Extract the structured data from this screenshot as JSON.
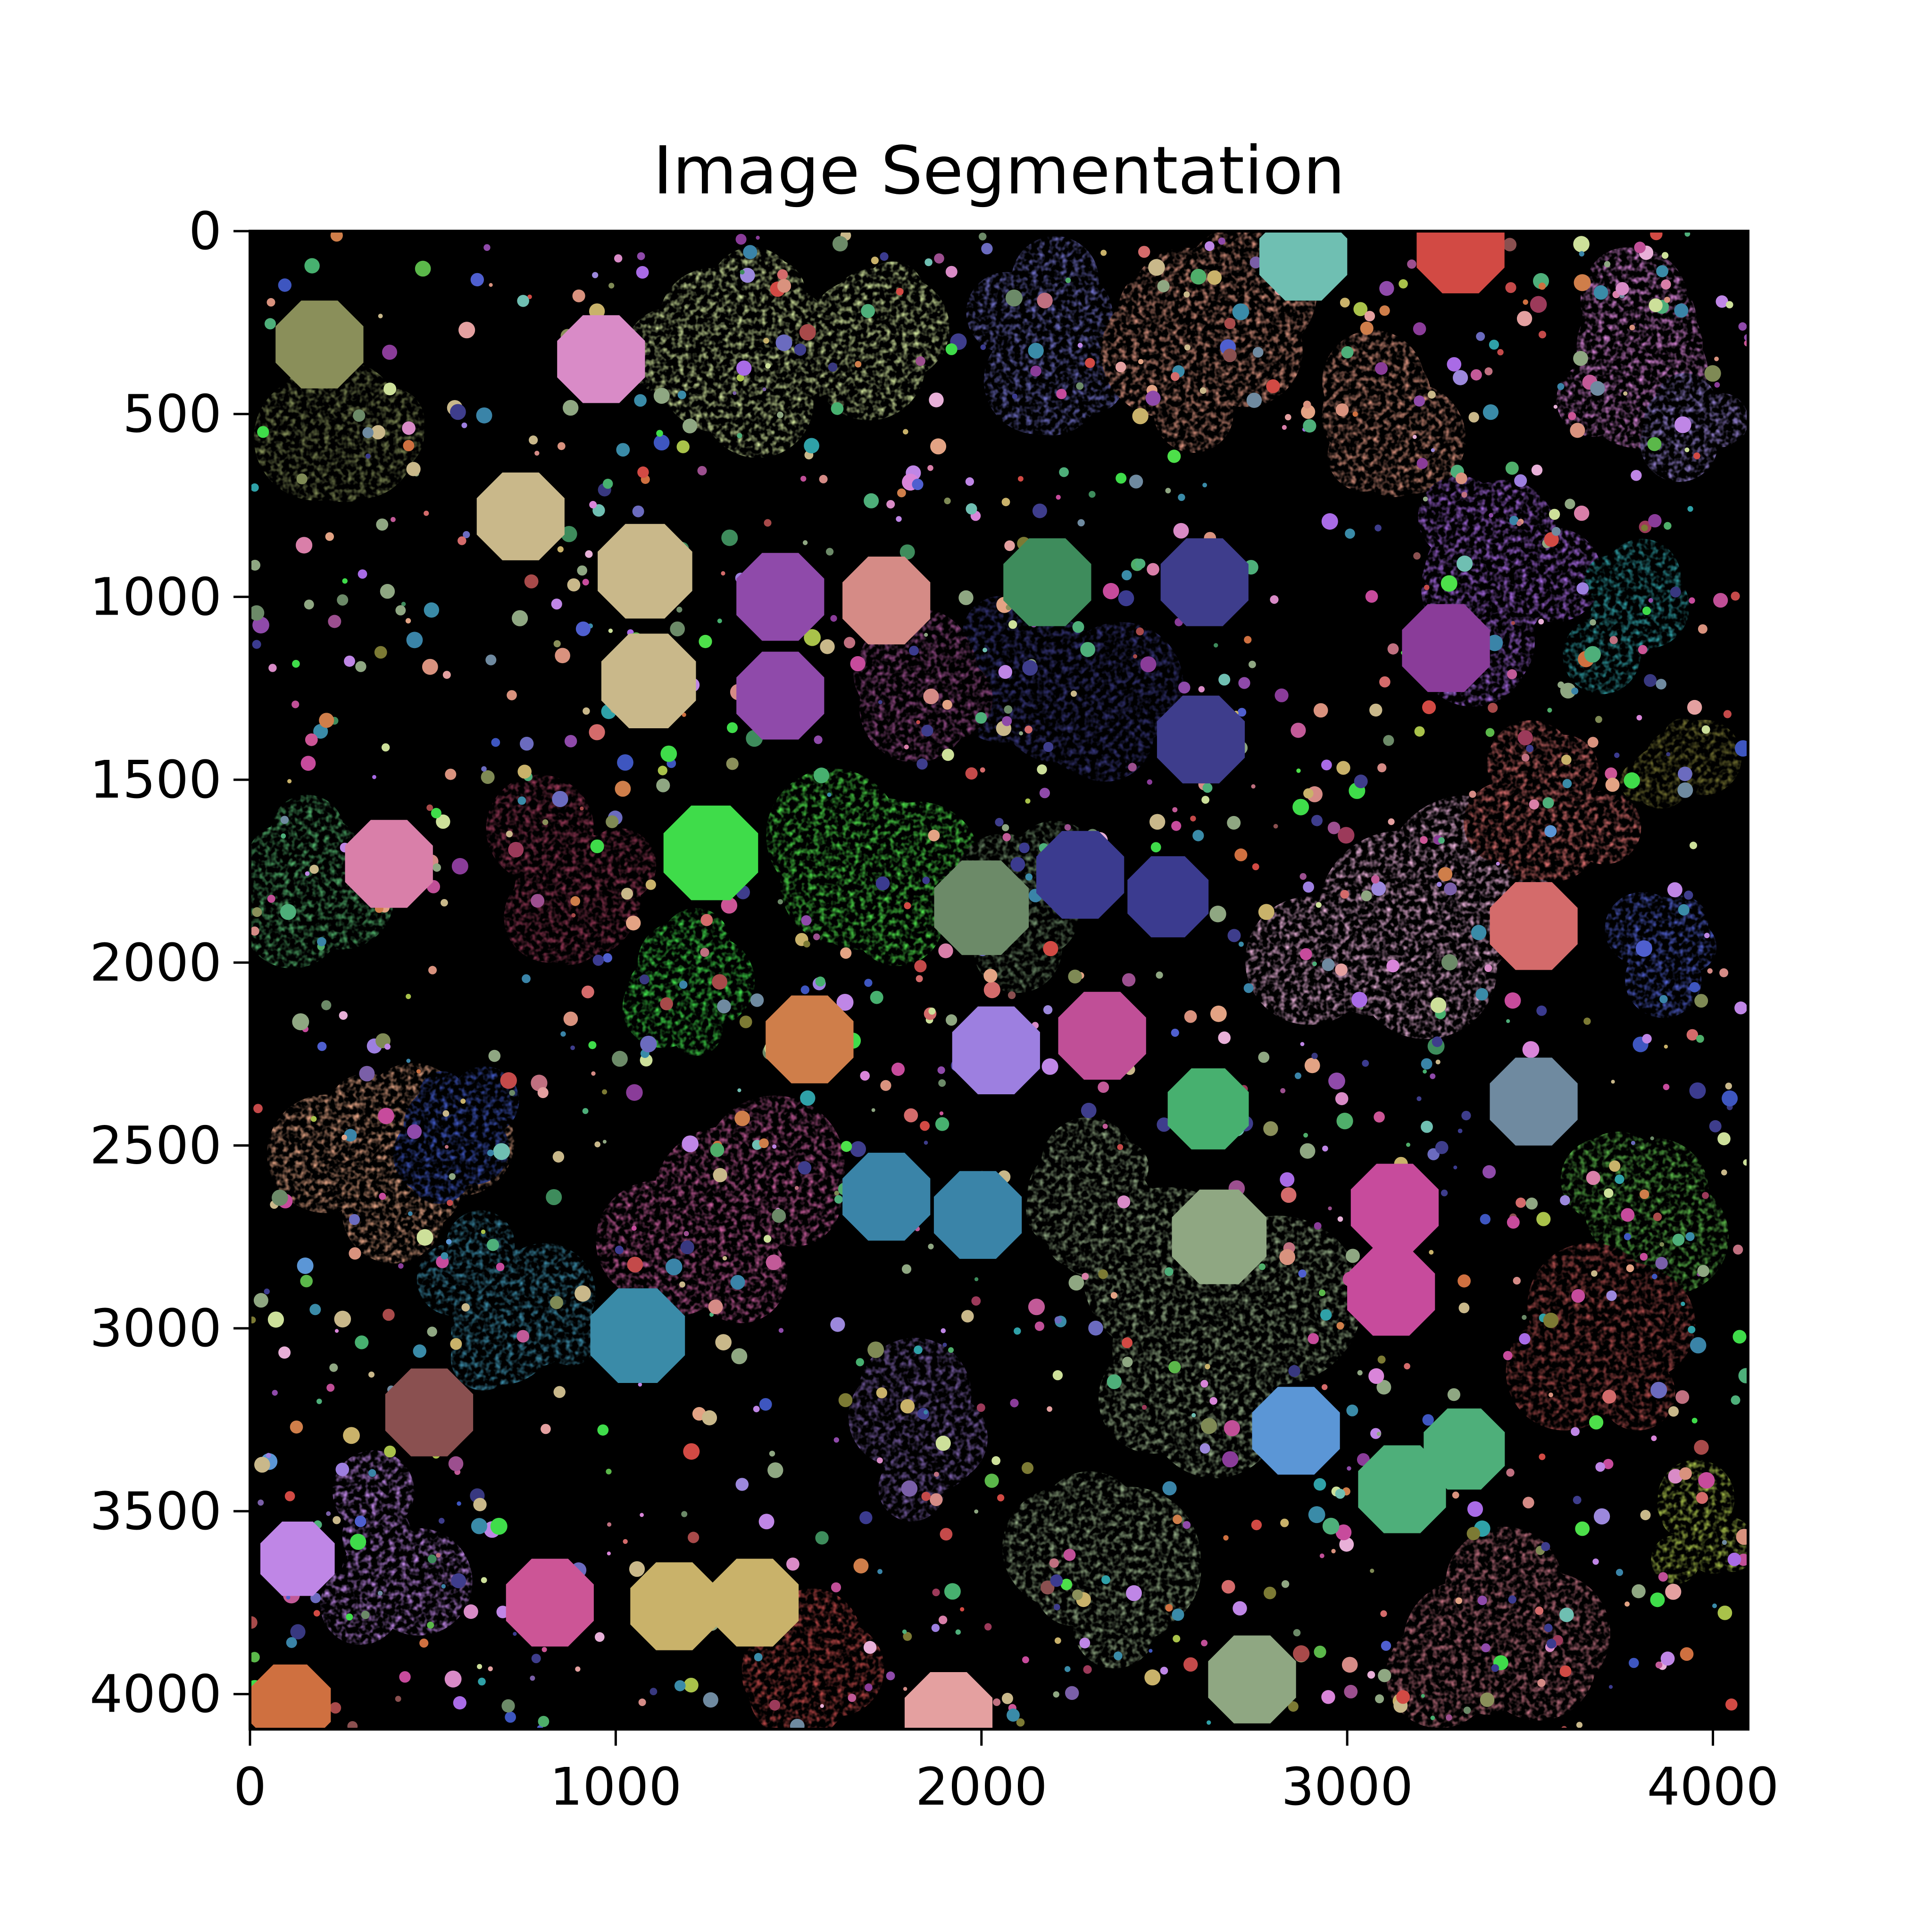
{
  "chart_data": {
    "type": "heatmap",
    "title": "Image Segmentation",
    "xlabel": "",
    "ylabel": "",
    "xlim": [
      0,
      4096
    ],
    "ylim": [
      4096,
      0
    ],
    "x_ticks": [
      0,
      1000,
      2000,
      3000,
      4000
    ],
    "y_ticks": [
      0,
      500,
      1000,
      1500,
      2000,
      2500,
      3000,
      3500,
      4000
    ],
    "x_tick_labels": [
      "0",
      "1000",
      "2000",
      "3000",
      "4000"
    ],
    "y_tick_labels": [
      "0",
      "500",
      "1000",
      "1500",
      "2000",
      "2500",
      "3000",
      "3500",
      "4000"
    ],
    "background_color": "#000000",
    "segments": [
      {
        "x": 960,
        "y": 350,
        "r": 130,
        "color": "#d98bc7",
        "shape": "octagon"
      },
      {
        "x": 2880,
        "y": 70,
        "r": 130,
        "color": "#6fbfb2",
        "shape": "octagon"
      },
      {
        "x": 3310,
        "y": 50,
        "r": 130,
        "color": "#d24a44",
        "shape": "octagon"
      },
      {
        "x": 190,
        "y": 310,
        "r": 130,
        "color": "#8a8f5a",
        "shape": "octagon"
      },
      {
        "x": 740,
        "y": 780,
        "r": 130,
        "color": "#c9b88a",
        "shape": "octagon"
      },
      {
        "x": 1080,
        "y": 930,
        "r": 140,
        "color": "#c9b88a",
        "shape": "octagon"
      },
      {
        "x": 1090,
        "y": 1230,
        "r": 140,
        "color": "#c9b88a",
        "shape": "octagon"
      },
      {
        "x": 1450,
        "y": 1000,
        "r": 130,
        "color": "#8f4aaa",
        "shape": "octagon"
      },
      {
        "x": 1450,
        "y": 1270,
        "r": 130,
        "color": "#8f4aaa",
        "shape": "octagon"
      },
      {
        "x": 1740,
        "y": 1010,
        "r": 130,
        "color": "#d58b86",
        "shape": "octagon"
      },
      {
        "x": 2180,
        "y": 960,
        "r": 130,
        "color": "#3e8c5c",
        "shape": "octagon"
      },
      {
        "x": 2610,
        "y": 960,
        "r": 130,
        "color": "#3e3d8c",
        "shape": "octagon"
      },
      {
        "x": 2600,
        "y": 1390,
        "r": 130,
        "color": "#3e3d8c",
        "shape": "octagon"
      },
      {
        "x": 3270,
        "y": 1140,
        "r": 130,
        "color": "#8a3c99",
        "shape": "octagon"
      },
      {
        "x": 380,
        "y": 1730,
        "r": 130,
        "color": "#d97fa9",
        "shape": "octagon"
      },
      {
        "x": 1260,
        "y": 1700,
        "r": 140,
        "color": "#3fdc4a",
        "shape": "octagon"
      },
      {
        "x": 2000,
        "y": 1850,
        "r": 140,
        "color": "#6c8a68",
        "shape": "octagon"
      },
      {
        "x": 2270,
        "y": 1760,
        "r": 130,
        "color": "#3b3b8f",
        "shape": "octagon"
      },
      {
        "x": 2510,
        "y": 1820,
        "r": 120,
        "color": "#3b3b8f",
        "shape": "octagon"
      },
      {
        "x": 3510,
        "y": 1900,
        "r": 130,
        "color": "#d46b6b",
        "shape": "octagon"
      },
      {
        "x": 1530,
        "y": 2210,
        "r": 130,
        "color": "#cf7e4a",
        "shape": "octagon"
      },
      {
        "x": 2040,
        "y": 2240,
        "r": 130,
        "color": "#9d7fe0",
        "shape": "octagon"
      },
      {
        "x": 2330,
        "y": 2200,
        "r": 130,
        "color": "#c04f97",
        "shape": "octagon"
      },
      {
        "x": 2620,
        "y": 2400,
        "r": 120,
        "color": "#47b06f",
        "shape": "octagon"
      },
      {
        "x": 3510,
        "y": 2380,
        "r": 130,
        "color": "#6f8aa0",
        "shape": "octagon"
      },
      {
        "x": 1740,
        "y": 2640,
        "r": 130,
        "color": "#3a84a8",
        "shape": "octagon"
      },
      {
        "x": 1990,
        "y": 2690,
        "r": 130,
        "color": "#3a84a8",
        "shape": "octagon"
      },
      {
        "x": 3130,
        "y": 2670,
        "r": 130,
        "color": "#c74b9c",
        "shape": "octagon"
      },
      {
        "x": 3120,
        "y": 2900,
        "r": 130,
        "color": "#c74b9c",
        "shape": "octagon"
      },
      {
        "x": 2650,
        "y": 2750,
        "r": 140,
        "color": "#8fa782",
        "shape": "octagon"
      },
      {
        "x": 1060,
        "y": 3020,
        "r": 140,
        "color": "#3a8ba8",
        "shape": "octagon"
      },
      {
        "x": 490,
        "y": 3230,
        "r": 130,
        "color": "#8a5050",
        "shape": "octagon"
      },
      {
        "x": 2860,
        "y": 3280,
        "r": 130,
        "color": "#5b96d6",
        "shape": "octagon"
      },
      {
        "x": 3150,
        "y": 3440,
        "r": 130,
        "color": "#4eaf7a",
        "shape": "octagon"
      },
      {
        "x": 3320,
        "y": 3330,
        "r": 120,
        "color": "#4eaf7a",
        "shape": "octagon"
      },
      {
        "x": 820,
        "y": 3750,
        "r": 130,
        "color": "#cc5596",
        "shape": "octagon"
      },
      {
        "x": 1160,
        "y": 3760,
        "r": 130,
        "color": "#c9b26a",
        "shape": "octagon"
      },
      {
        "x": 1380,
        "y": 3750,
        "r": 130,
        "color": "#c9b26a",
        "shape": "octagon"
      },
      {
        "x": 1910,
        "y": 4060,
        "r": 130,
        "color": "#e4a0a0",
        "shape": "octagon"
      },
      {
        "x": 2740,
        "y": 3960,
        "r": 130,
        "color": "#8fa782",
        "shape": "octagon"
      },
      {
        "x": 130,
        "y": 3630,
        "r": 110,
        "color": "#bf86e6",
        "shape": "octagon"
      },
      {
        "x": 110,
        "y": 4030,
        "r": 120,
        "color": "#cf7040",
        "shape": "octagon"
      },
      {
        "x": 1300,
        "y": 300,
        "r": 330,
        "color": "#cde09a",
        "shape": "blob"
      },
      {
        "x": 1680,
        "y": 280,
        "r": 300,
        "color": "#cde09a",
        "shape": "blob"
      },
      {
        "x": 300,
        "y": 550,
        "r": 340,
        "color": "#7f8a55",
        "shape": "blob"
      },
      {
        "x": 2150,
        "y": 320,
        "r": 300,
        "color": "#6b6bbf",
        "shape": "blob"
      },
      {
        "x": 2650,
        "y": 320,
        "r": 340,
        "color": "#d9927e",
        "shape": "blob"
      },
      {
        "x": 3100,
        "y": 500,
        "r": 280,
        "color": "#d9927e",
        "shape": "blob"
      },
      {
        "x": 3800,
        "y": 300,
        "r": 320,
        "color": "#d985d9",
        "shape": "blob"
      },
      {
        "x": 3950,
        "y": 550,
        "r": 200,
        "color": "#9c88dc",
        "shape": "blob"
      },
      {
        "x": 3400,
        "y": 950,
        "r": 330,
        "color": "#a96be6",
        "shape": "blob"
      },
      {
        "x": 3750,
        "y": 1050,
        "r": 220,
        "color": "#2fa1a8",
        "shape": "blob"
      },
      {
        "x": 2200,
        "y": 1250,
        "r": 350,
        "color": "#383880",
        "shape": "blob"
      },
      {
        "x": 1800,
        "y": 1300,
        "r": 280,
        "color": "#9c4f8f",
        "shape": "blob"
      },
      {
        "x": 1650,
        "y": 1750,
        "r": 350,
        "color": "#4de04a",
        "shape": "blob"
      },
      {
        "x": 1250,
        "y": 2050,
        "r": 250,
        "color": "#3fdc4a",
        "shape": "blob"
      },
      {
        "x": 850,
        "y": 1800,
        "r": 330,
        "color": "#9c3a5a",
        "shape": "blob"
      },
      {
        "x": 150,
        "y": 1800,
        "r": 280,
        "color": "#4fae6a",
        "shape": "blob"
      },
      {
        "x": 3100,
        "y": 1900,
        "r": 420,
        "color": "#e8b0d8",
        "shape": "blob"
      },
      {
        "x": 3550,
        "y": 1600,
        "r": 250,
        "color": "#d46b6b",
        "shape": "blob"
      },
      {
        "x": 3900,
        "y": 1450,
        "r": 200,
        "color": "#7c7a34",
        "shape": "blob"
      },
      {
        "x": 3900,
        "y": 1950,
        "r": 200,
        "color": "#4f5fcf",
        "shape": "blob"
      },
      {
        "x": 1300,
        "y": 2650,
        "r": 380,
        "color": "#c25a98",
        "shape": "blob"
      },
      {
        "x": 400,
        "y": 2500,
        "r": 300,
        "color": "#e3a384",
        "shape": "blob"
      },
      {
        "x": 550,
        "y": 2450,
        "r": 200,
        "color": "#3e56c0",
        "shape": "blob"
      },
      {
        "x": 3800,
        "y": 2650,
        "r": 300,
        "color": "#5bb84a",
        "shape": "blob"
      },
      {
        "x": 3650,
        "y": 3050,
        "r": 320,
        "color": "#a84a4a",
        "shape": "blob"
      },
      {
        "x": 2600,
        "y": 3050,
        "r": 450,
        "color": "#8fa782",
        "shape": "blob"
      },
      {
        "x": 2400,
        "y": 3600,
        "r": 400,
        "color": "#8fa782",
        "shape": "blob"
      },
      {
        "x": 700,
        "y": 2950,
        "r": 330,
        "color": "#3a8ba8",
        "shape": "blob"
      },
      {
        "x": 1900,
        "y": 3300,
        "r": 300,
        "color": "#7a5fa8",
        "shape": "blob"
      },
      {
        "x": 350,
        "y": 3600,
        "r": 280,
        "color": "#bf86e6",
        "shape": "blob"
      },
      {
        "x": 1500,
        "y": 3900,
        "r": 250,
        "color": "#c44a4a",
        "shape": "blob"
      },
      {
        "x": 3400,
        "y": 3900,
        "r": 320,
        "color": "#c07080",
        "shape": "blob"
      },
      {
        "x": 3950,
        "y": 3550,
        "r": 200,
        "color": "#a9c24a",
        "shape": "blob"
      },
      {
        "x": 2100,
        "y": 1800,
        "r": 250,
        "color": "#6c8a68",
        "shape": "blob"
      },
      {
        "x": 2330,
        "y": 2700,
        "r": 250,
        "color": "#8fa782",
        "shape": "blob"
      }
    ]
  }
}
